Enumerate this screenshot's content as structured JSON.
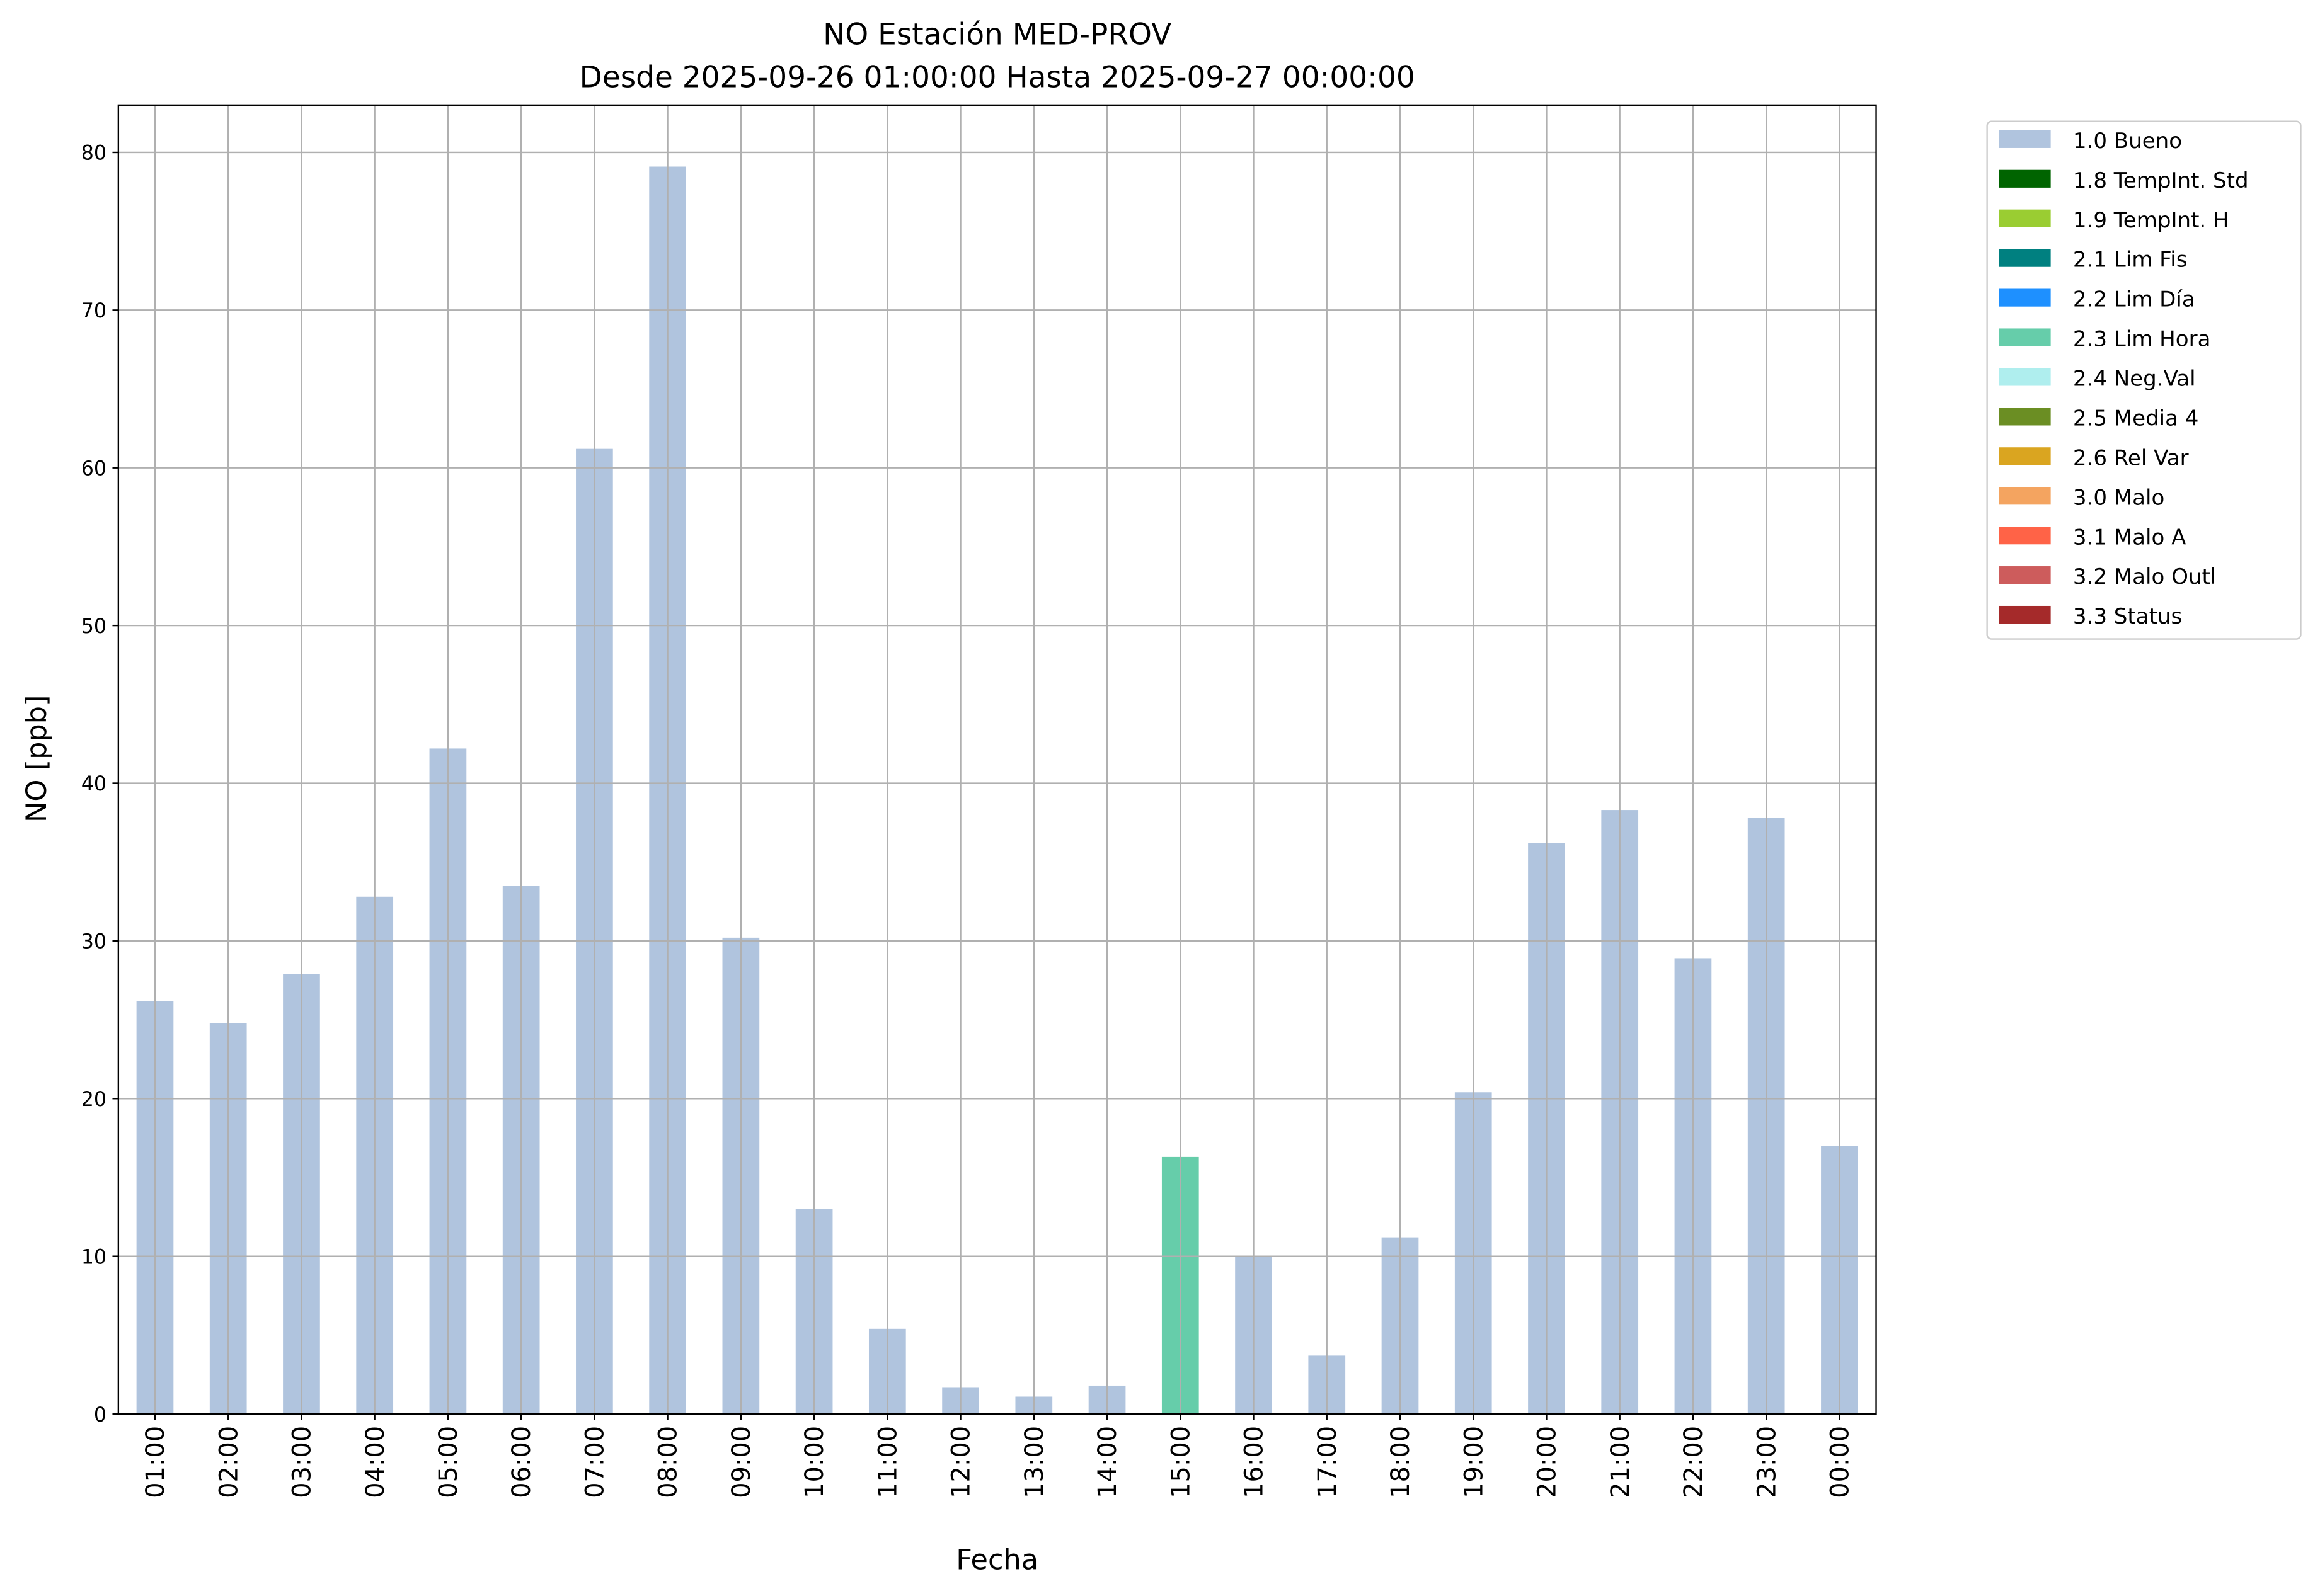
{
  "chart_data": {
    "type": "bar",
    "title": "NO Estación MED-PROV",
    "subtitle": "Desde 2025-09-26 01:00:00 Hasta 2025-09-27 00:00:00",
    "xlabel": "Fecha",
    "ylabel": "NO [ppb]",
    "ylim": [
      0,
      83
    ],
    "yticks": [
      0,
      10,
      20,
      30,
      40,
      50,
      60,
      70,
      80
    ],
    "grid": true,
    "legend_position": "outside-top-right",
    "categories": [
      "01:00",
      "02:00",
      "03:00",
      "04:00",
      "05:00",
      "06:00",
      "07:00",
      "08:00",
      "09:00",
      "10:00",
      "11:00",
      "12:00",
      "13:00",
      "14:00",
      "15:00",
      "16:00",
      "17:00",
      "18:00",
      "19:00",
      "20:00",
      "21:00",
      "22:00",
      "23:00",
      "00:00"
    ],
    "values": [
      26.2,
      24.8,
      27.9,
      32.8,
      42.2,
      33.5,
      61.2,
      79.1,
      30.2,
      13.0,
      5.4,
      1.7,
      1.1,
      1.8,
      16.3,
      10.0,
      3.7,
      11.2,
      20.4,
      36.2,
      38.3,
      28.9,
      37.8,
      17.0
    ],
    "flags": [
      "1.0 Bueno",
      "1.0 Bueno",
      "1.0 Bueno",
      "1.0 Bueno",
      "1.0 Bueno",
      "1.0 Bueno",
      "1.0 Bueno",
      "1.0 Bueno",
      "1.0 Bueno",
      "1.0 Bueno",
      "1.0 Bueno",
      "1.0 Bueno",
      "1.0 Bueno",
      "1.0 Bueno",
      "2.3 Lim Hora",
      "1.0 Bueno",
      "1.0 Bueno",
      "1.0 Bueno",
      "1.0 Bueno",
      "1.0 Bueno",
      "1.0 Bueno",
      "1.0 Bueno",
      "1.0 Bueno",
      "1.0 Bueno"
    ],
    "legend": [
      {
        "label": "1.0 Bueno",
        "color": "#b0c4de"
      },
      {
        "label": "1.8 TempInt. Std",
        "color": "#006400"
      },
      {
        "label": "1.9 TempInt. H",
        "color": "#9acd32"
      },
      {
        "label": "2.1 Lim Fis",
        "color": "#008080"
      },
      {
        "label": "2.2 Lim Día",
        "color": "#1e90ff"
      },
      {
        "label": "2.3 Lim Hora",
        "color": "#66cdaa"
      },
      {
        "label": "2.4 Neg.Val",
        "color": "#afeeee"
      },
      {
        "label": "2.5 Media 4",
        "color": "#6b8e23"
      },
      {
        "label": "2.6 Rel Var",
        "color": "#daa520"
      },
      {
        "label": "3.0 Malo",
        "color": "#f4a460"
      },
      {
        "label": "3.1 Malo A",
        "color": "#ff6347"
      },
      {
        "label": "3.2 Malo Outl",
        "color": "#cd5c5c"
      },
      {
        "label": "3.3 Status",
        "color": "#a52a2a"
      }
    ]
  }
}
